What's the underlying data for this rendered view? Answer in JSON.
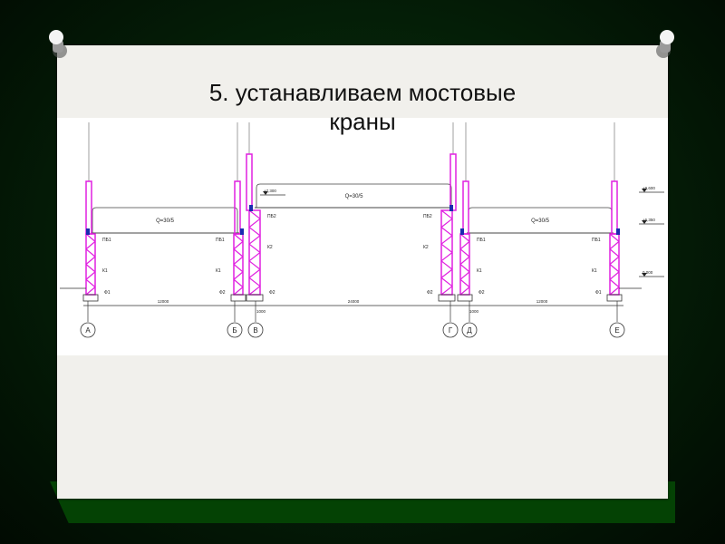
{
  "slide": {
    "title_line1": "5. устанавливаем мостовые",
    "title_line2": "краны"
  },
  "drawing": {
    "crane_capacity": [
      "Q=30/5",
      "Q=30/5",
      "Q=30/5"
    ],
    "axes": [
      "А",
      "Б",
      "В",
      "Г",
      "Д",
      "Е"
    ],
    "spans": [
      "12000",
      "24000",
      "12000"
    ],
    "offsets": [
      "1000",
      "1000"
    ],
    "crane_beams": [
      "ПБ1",
      "ПБ1",
      "ПБ2",
      "ПБ2",
      "ПБ1",
      "ПБ1"
    ],
    "columns": [
      "К1",
      "К1",
      "К2",
      "К2",
      "К1",
      "К1"
    ],
    "foundations": [
      "Ф1",
      "Ф2",
      "Ф2",
      "Ф2",
      "Ф2",
      "Ф1"
    ],
    "elevations": [
      "+7,300",
      "+9,600",
      "+6,350",
      "0,000"
    ],
    "colors": {
      "column": "#e020e0",
      "beam": "#1a2bb0",
      "line": "#333333"
    }
  }
}
